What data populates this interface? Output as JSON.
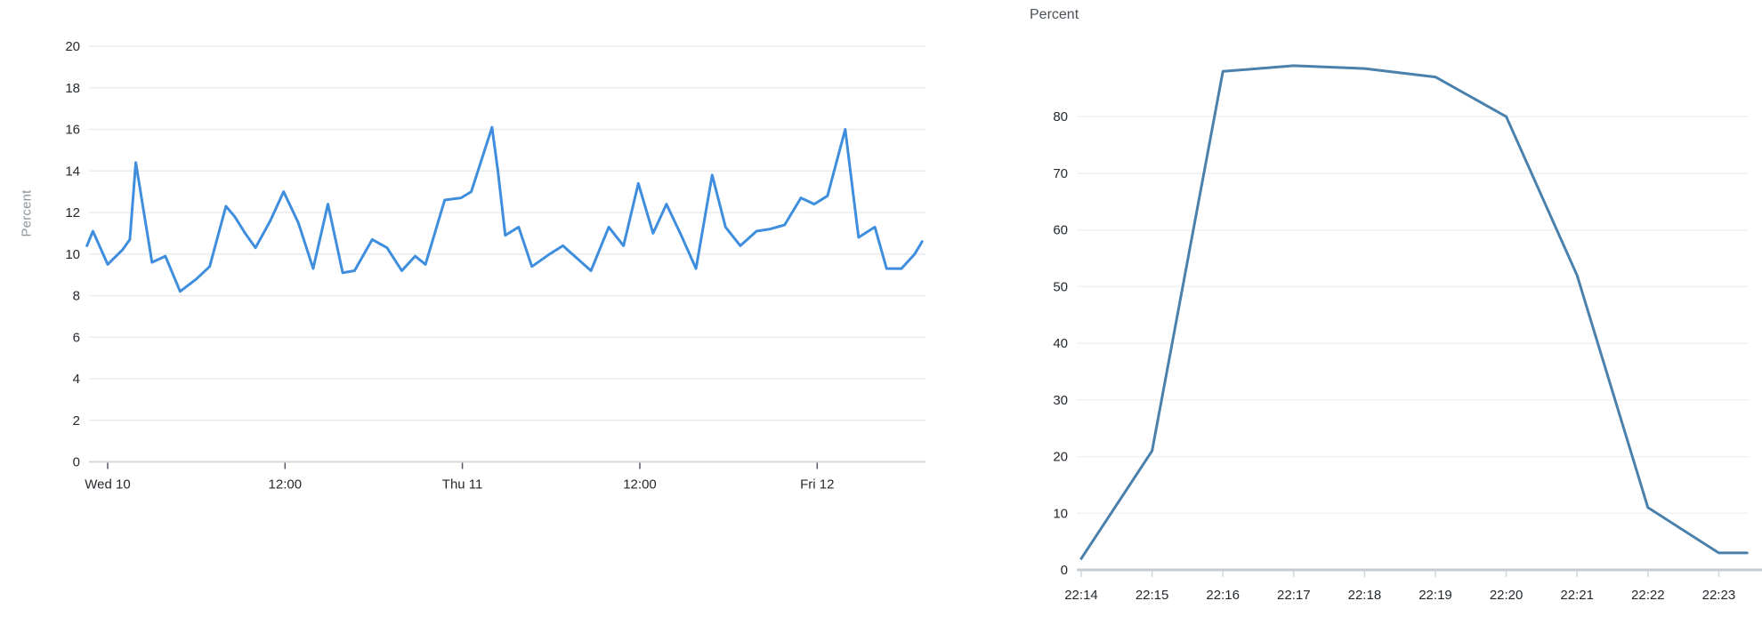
{
  "page": {
    "background": "#ffffff"
  },
  "chart_data": [
    {
      "type": "line",
      "title": "",
      "ylabel": "Percent",
      "xlabel": "",
      "ylim": [
        0,
        20
      ],
      "y_tick_labels": [
        0,
        2,
        4,
        6,
        8,
        10,
        12,
        14,
        16,
        18,
        20
      ],
      "x_unit": "hours_from_first_tick",
      "x_tick_positions": [
        0,
        12,
        24,
        36,
        48
      ],
      "x_tick_labels": [
        "Wed 10",
        "12:00",
        "Thu 11",
        "12:00",
        "Fri 12"
      ],
      "grid": true,
      "legend": "none",
      "line_color": "#3f8ede",
      "series_name": "percent-series-3day",
      "x": [
        -1.4,
        -1.0,
        0.0,
        1.0,
        1.5,
        1.9,
        3.0,
        3.9,
        4.9,
        6.0,
        6.9,
        8.0,
        8.6,
        9.3,
        10.0,
        11.0,
        11.9,
        12.9,
        13.9,
        14.9,
        15.9,
        16.7,
        17.9,
        18.9,
        19.9,
        20.8,
        21.5,
        22.8,
        23.9,
        24.6,
        26.0,
        26.4,
        26.9,
        27.8,
        28.7,
        29.9,
        30.8,
        31.9,
        32.7,
        33.9,
        34.9,
        35.9,
        36.9,
        37.8,
        38.8,
        39.8,
        40.9,
        41.8,
        42.8,
        43.9,
        44.8,
        45.8,
        46.9,
        47.8,
        48.7,
        49.9,
        50.8,
        51.9,
        52.7,
        53.7,
        54.6,
        55.1
      ],
      "values": [
        10.4,
        11.1,
        9.5,
        10.2,
        10.7,
        14.4,
        9.6,
        9.9,
        8.2,
        8.8,
        9.4,
        12.3,
        11.8,
        11.0,
        10.3,
        11.6,
        13.0,
        11.5,
        9.3,
        12.4,
        9.1,
        9.2,
        10.7,
        10.3,
        9.2,
        9.9,
        9.5,
        12.6,
        12.7,
        13.0,
        16.1,
        14.0,
        10.9,
        11.3,
        9.4,
        10.0,
        10.4,
        9.7,
        9.2,
        11.3,
        10.4,
        13.4,
        11.0,
        12.4,
        10.9,
        9.3,
        13.8,
        11.3,
        10.4,
        11.1,
        11.2,
        11.4,
        12.7,
        12.4,
        12.8,
        16.0,
        10.8,
        11.3,
        9.3,
        9.3,
        10.0,
        10.6
      ]
    },
    {
      "type": "line",
      "title": "",
      "ylabel": "Percent",
      "xlabel": "",
      "ylim": [
        0,
        90
      ],
      "y_tick_labels": [
        0,
        10,
        20,
        30,
        40,
        50,
        60,
        70,
        80
      ],
      "x_unit": "minutes_from_first_tick",
      "x_tick_positions": [
        0,
        1,
        2,
        3,
        4,
        5,
        6,
        7,
        8,
        9
      ],
      "x_tick_labels": [
        "22:14",
        "22:15",
        "22:16",
        "22:17",
        "22:18",
        "22:19",
        "22:20",
        "22:21",
        "22:22",
        "22:23"
      ],
      "grid": true,
      "legend": "none",
      "line_color": "#4a80ac",
      "series_name": "percent-series-10min",
      "x": [
        0,
        1,
        2,
        3,
        4,
        5,
        6,
        7,
        8,
        9,
        9.4
      ],
      "values": [
        2,
        21,
        88,
        89,
        88.5,
        87,
        80,
        52,
        11,
        3,
        3
      ]
    }
  ]
}
